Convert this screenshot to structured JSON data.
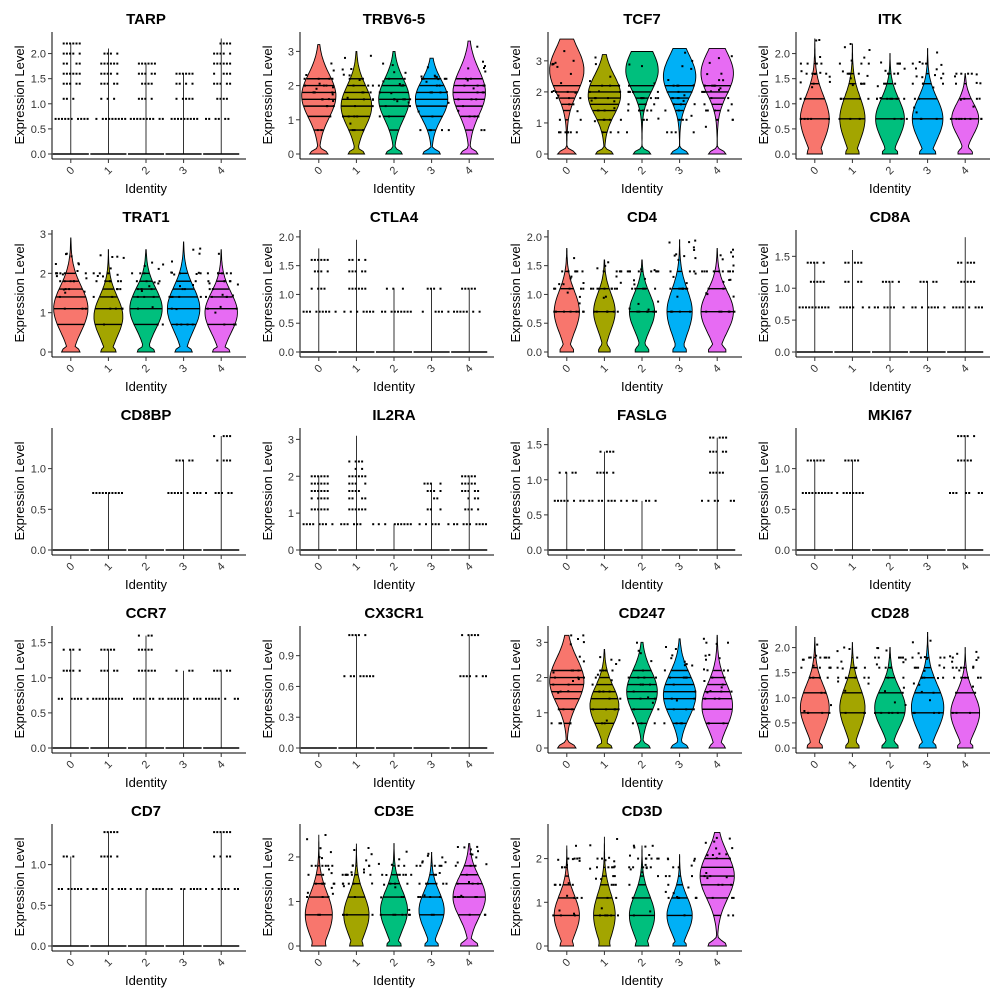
{
  "chart_data": {
    "type": "violin",
    "layout": "grid 5 rows x 4 columns",
    "identities": [
      "0",
      "1",
      "2",
      "3",
      "4"
    ],
    "identity_colors": [
      "#F8766D",
      "#A3A500",
      "#00BF7D",
      "#00B0F6",
      "#E76BF3"
    ],
    "xlabel": "Identity",
    "ylabel": "Expression Level",
    "panels": [
      {
        "title": "TARP",
        "ylim": [
          0,
          2.35
        ],
        "yticks": [
          "0.0",
          "0.5",
          "1.0",
          "1.5",
          "2.0"
        ],
        "ytick_values": [
          0,
          0.5,
          1,
          1.5,
          2
        ],
        "max_values": [
          2.2,
          2.1,
          1.8,
          1.6,
          2.3
        ],
        "violin_widths": [
          0,
          0,
          0,
          0,
          0
        ],
        "levels": [
          0,
          0.7,
          1.1,
          1.4,
          1.6,
          1.8,
          2.0,
          2.2
        ]
      },
      {
        "title": "TRBV6-5",
        "ylim": [
          0,
          3.45
        ],
        "yticks": [
          "0",
          "1",
          "2",
          "3"
        ],
        "ytick_values": [
          0,
          1,
          2,
          3
        ],
        "max_values": [
          3.2,
          3.0,
          3.0,
          2.8,
          3.3
        ],
        "violin_widths": [
          0.95,
          0.85,
          0.85,
          0.9,
          0.9
        ],
        "violin_peak": [
          1.7,
          1.4,
          1.6,
          1.6,
          1.8
        ],
        "levels": [
          0.7,
          1.1,
          1.4,
          1.6,
          1.8,
          2.0,
          2.2
        ]
      },
      {
        "title": "TCF7",
        "ylim": [
          0,
          3.8
        ],
        "yticks": [
          "0",
          "1",
          "2",
          "3"
        ],
        "ytick_values": [
          0,
          1,
          2,
          3
        ],
        "max_values": [
          3.7,
          3.2,
          3.3,
          3.4,
          3.4
        ],
        "violin_widths": [
          0.95,
          0.9,
          0.9,
          0.9,
          0.9
        ],
        "violin_peak": [
          2.7,
          1.9,
          2.7,
          2.5,
          2.6
        ],
        "levels": [
          0.7,
          1.1,
          1.4,
          1.6,
          1.8,
          2.0,
          2.2
        ]
      },
      {
        "title": "ITK",
        "ylim": [
          0,
          2.35
        ],
        "yticks": [
          "0.0",
          "0.5",
          "1.0",
          "1.5",
          "2.0"
        ],
        "ytick_values": [
          0,
          0.5,
          1,
          1.5,
          2
        ],
        "max_values": [
          2.3,
          2.2,
          2.0,
          2.1,
          1.6
        ],
        "violin_widths": [
          0.8,
          0.7,
          0.8,
          0.85,
          0.75
        ],
        "violin_peak": [
          0.7,
          0.7,
          0.7,
          0.7,
          0.7
        ],
        "levels": [
          0.7,
          1.1,
          1.4,
          1.6,
          1.8
        ]
      },
      {
        "title": "TRAT1",
        "ylim": [
          0,
          3.0
        ],
        "yticks": [
          "0",
          "1",
          "2",
          "3"
        ],
        "ytick_values": [
          0,
          1,
          2,
          3
        ],
        "max_values": [
          2.9,
          2.6,
          2.6,
          2.8,
          2.6
        ],
        "violin_widths": [
          0.95,
          0.8,
          0.9,
          0.9,
          0.9
        ],
        "violin_peak": [
          1.1,
          0.9,
          1.1,
          1.1,
          1.0
        ],
        "levels": [
          0.7,
          1.1,
          1.4,
          1.6,
          1.8,
          2.0
        ]
      },
      {
        "title": "CTLA4",
        "ylim": [
          0,
          2.05
        ],
        "yticks": [
          "0.0",
          "0.5",
          "1.0",
          "1.5",
          "2.0"
        ],
        "ytick_values": [
          0,
          0.5,
          1,
          1.5,
          2
        ],
        "max_values": [
          1.8,
          1.95,
          1.1,
          1.1,
          1.1
        ],
        "violin_widths": [
          0,
          0,
          0,
          0,
          0
        ],
        "levels": [
          0,
          0.7,
          1.1,
          1.4,
          1.6
        ]
      },
      {
        "title": "CD4",
        "ylim": [
          0,
          2.05
        ],
        "yticks": [
          "0.0",
          "0.5",
          "1.0",
          "1.5",
          "2.0"
        ],
        "ytick_values": [
          0,
          0.5,
          1,
          1.5,
          2
        ],
        "max_values": [
          1.8,
          1.6,
          1.6,
          1.95,
          1.8
        ],
        "violin_widths": [
          0.7,
          0.6,
          0.7,
          0.7,
          0.9
        ],
        "violin_peak": [
          0.7,
          0.7,
          0.7,
          0.7,
          0.7
        ],
        "levels": [
          0.7,
          1.1,
          1.4
        ]
      },
      {
        "title": "CD8A",
        "ylim": [
          0,
          1.85
        ],
        "yticks": [
          "0.0",
          "0.5",
          "1.0",
          "1.5"
        ],
        "ytick_values": [
          0,
          0.5,
          1,
          1.5
        ],
        "max_values": [
          1.4,
          1.6,
          1.1,
          1.1,
          1.8
        ],
        "violin_widths": [
          0,
          0,
          0,
          0,
          0
        ],
        "levels": [
          0,
          0.7,
          1.1,
          1.4
        ]
      },
      {
        "title": "CD8BP",
        "ylim": [
          0,
          1.45
        ],
        "yticks": [
          "0.0",
          "0.5",
          "1.0"
        ],
        "ytick_values": [
          0,
          0.5,
          1
        ],
        "max_values": [
          0,
          0.7,
          0,
          1.1,
          1.4
        ],
        "violin_widths": [
          0,
          0,
          0,
          0,
          0
        ],
        "levels": [
          0,
          0.7,
          1.1,
          1.4
        ]
      },
      {
        "title": "IL2RA",
        "ylim": [
          0,
          3.2
        ],
        "yticks": [
          "0",
          "1",
          "2",
          "3"
        ],
        "ytick_values": [
          0,
          1,
          2,
          3
        ],
        "max_values": [
          2.0,
          3.1,
          0.7,
          1.8,
          2.0
        ],
        "violin_widths": [
          0,
          0,
          0,
          0,
          0
        ],
        "levels": [
          0,
          0.7,
          1.1,
          1.4,
          1.6,
          1.8,
          2.0,
          2.2,
          2.4
        ]
      },
      {
        "title": "FASLG",
        "ylim": [
          0,
          1.68
        ],
        "yticks": [
          "0.0",
          "0.5",
          "1.0",
          "1.5"
        ],
        "ytick_values": [
          0,
          0.5,
          1,
          1.5
        ],
        "max_values": [
          1.1,
          1.4,
          0.7,
          0,
          1.6
        ],
        "violin_widths": [
          0,
          0,
          0,
          0,
          0
        ],
        "levels": [
          0,
          0.7,
          1.1,
          1.4,
          1.6
        ]
      },
      {
        "title": "MKI67",
        "ylim": [
          0,
          1.45
        ],
        "yticks": [
          "0.0",
          "0.5",
          "1.0"
        ],
        "ytick_values": [
          0,
          0.5,
          1
        ],
        "max_values": [
          1.1,
          1.1,
          0,
          0,
          1.4
        ],
        "violin_widths": [
          0,
          0,
          0,
          0,
          0
        ],
        "levels": [
          0,
          0.7,
          1.1,
          1.4
        ]
      },
      {
        "title": "CCR7",
        "ylim": [
          0,
          1.68
        ],
        "yticks": [
          "0.0",
          "0.5",
          "1.0",
          "1.5"
        ],
        "ytick_values": [
          0,
          0.5,
          1,
          1.5
        ],
        "max_values": [
          1.4,
          1.4,
          1.6,
          1.1,
          1.1
        ],
        "violin_widths": [
          0,
          0,
          0,
          0,
          0
        ],
        "levels": [
          0,
          0.7,
          1.1,
          1.4,
          1.6
        ]
      },
      {
        "title": "CX3CR1",
        "ylim": [
          0,
          1.15
        ],
        "yticks": [
          "0.0",
          "0.3",
          "0.6",
          "0.9"
        ],
        "ytick_values": [
          0,
          0.3,
          0.6,
          0.9
        ],
        "max_values": [
          0,
          1.1,
          0,
          0,
          1.1
        ],
        "violin_widths": [
          0,
          0,
          0,
          0,
          0
        ],
        "levels": [
          0,
          0.7,
          1.1
        ]
      },
      {
        "title": "CD247",
        "ylim": [
          0,
          3.35
        ],
        "yticks": [
          "0",
          "1",
          "2",
          "3"
        ],
        "ytick_values": [
          0,
          1,
          2,
          3
        ],
        "max_values": [
          3.2,
          2.8,
          3.0,
          3.1,
          3.2
        ],
        "violin_widths": [
          0.95,
          0.8,
          0.85,
          0.9,
          0.85
        ],
        "violin_peak": [
          1.9,
          1.2,
          1.6,
          1.5,
          1.2
        ],
        "levels": [
          0.7,
          1.1,
          1.4,
          1.6,
          1.8,
          2.0,
          2.2
        ]
      },
      {
        "title": "CD28",
        "ylim": [
          0,
          2.35
        ],
        "yticks": [
          "0.0",
          "0.5",
          "1.0",
          "1.5",
          "2.0"
        ],
        "ytick_values": [
          0,
          0.5,
          1,
          1.5,
          2
        ],
        "max_values": [
          2.2,
          2.1,
          2.0,
          2.3,
          2.0
        ],
        "violin_widths": [
          0.8,
          0.7,
          0.85,
          0.9,
          0.8
        ],
        "violin_peak": [
          0.8,
          0.8,
          0.8,
          0.8,
          0.7
        ],
        "levels": [
          0.7,
          1.1,
          1.4,
          1.6,
          1.8
        ]
      },
      {
        "title": "CD7",
        "ylim": [
          0,
          1.45
        ],
        "yticks": [
          "0.0",
          "0.5",
          "1.0"
        ],
        "ytick_values": [
          0,
          0.5,
          1
        ],
        "max_values": [
          1.1,
          1.4,
          0.7,
          0.7,
          1.4
        ],
        "violin_widths": [
          0,
          0,
          0,
          0,
          0
        ],
        "levels": [
          0,
          0.7,
          1.1,
          1.4
        ]
      },
      {
        "title": "CD3E",
        "ylim": [
          0,
          2.65
        ],
        "yticks": [
          "0",
          "1",
          "2"
        ],
        "ytick_values": [
          0,
          1,
          2
        ],
        "max_values": [
          2.5,
          2.3,
          2.3,
          2.1,
          2.3
        ],
        "violin_widths": [
          0.75,
          0.7,
          0.75,
          0.7,
          0.9
        ],
        "violin_peak": [
          0.7,
          0.7,
          0.8,
          0.8,
          1.1
        ],
        "levels": [
          0.7,
          1.1,
          1.4,
          1.6,
          1.8
        ]
      },
      {
        "title": "CD3D",
        "ylim": [
          0,
          2.7
        ],
        "yticks": [
          "0",
          "1",
          "2"
        ],
        "ytick_values": [
          0,
          1,
          2
        ],
        "max_values": [
          2.3,
          2.5,
          2.3,
          2.1,
          2.6
        ],
        "violin_widths": [
          0.7,
          0.6,
          0.7,
          0.7,
          0.95
        ],
        "violin_peak": [
          0.7,
          0.7,
          0.7,
          0.7,
          1.6
        ],
        "levels": [
          0.7,
          1.1,
          1.4,
          1.6,
          1.8,
          2.0
        ]
      }
    ]
  }
}
